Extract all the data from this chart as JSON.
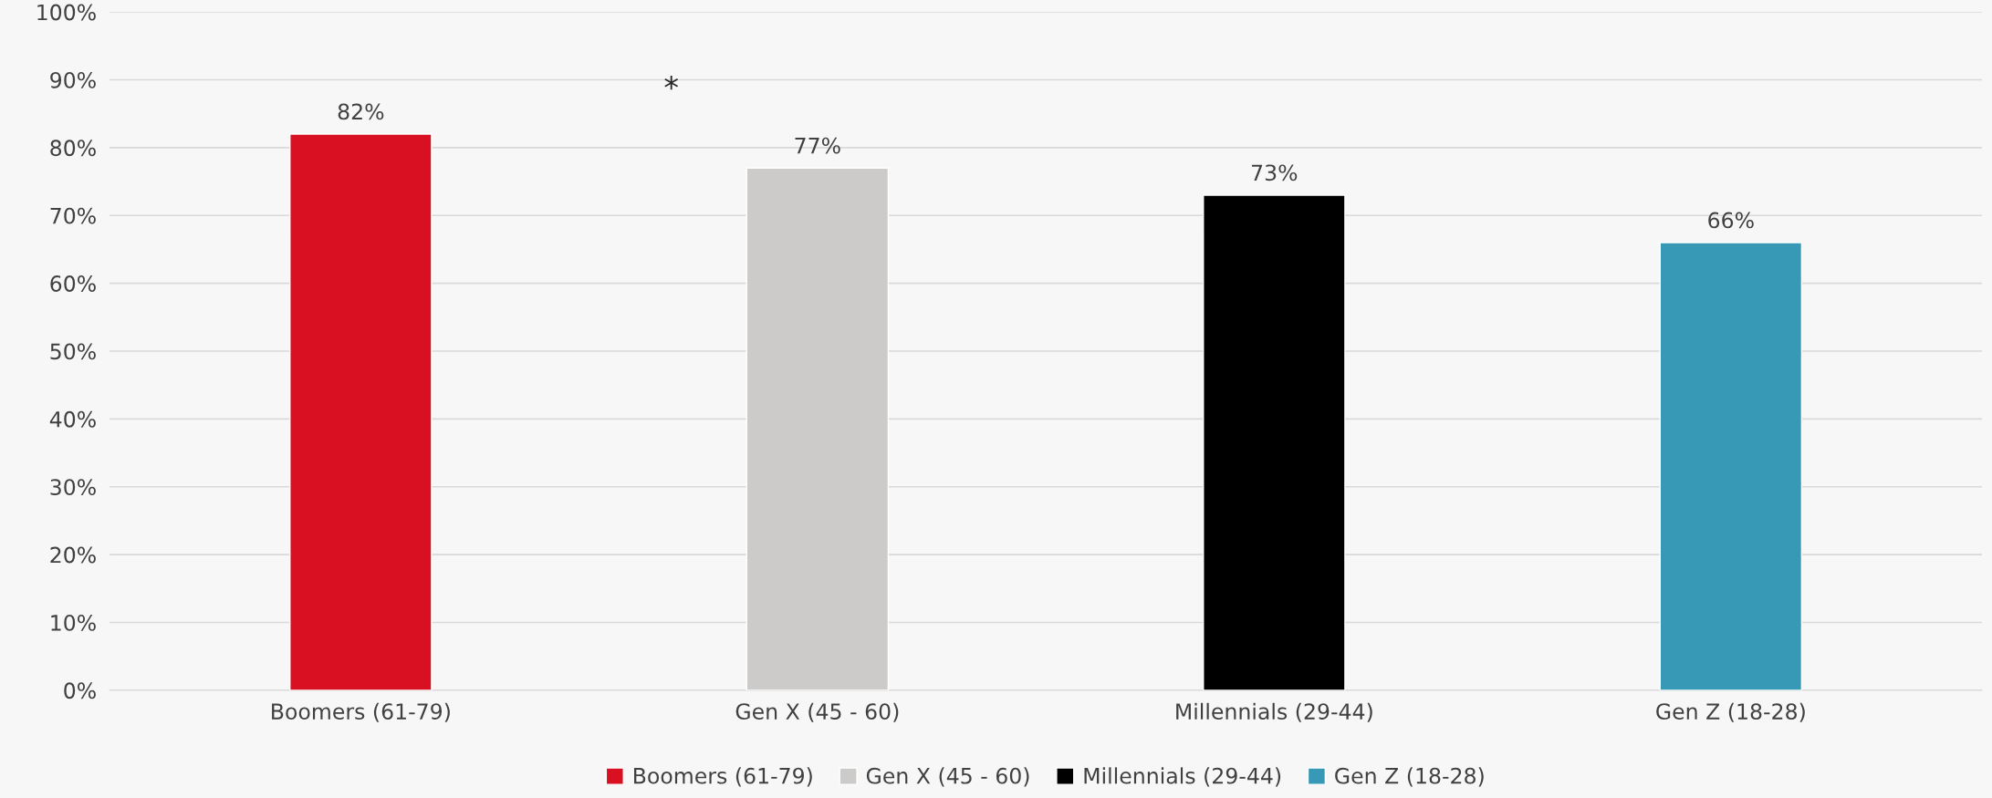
{
  "chart_data": {
    "type": "bar",
    "categories": [
      "Boomers (61-79)",
      "Gen X (45 - 60)",
      "Millennials (29-44)",
      "Gen Z (18-28)"
    ],
    "series": [
      {
        "name": "Boomers (61-79)",
        "color": "#d90f22",
        "values": [
          82,
          null,
          null,
          null
        ]
      },
      {
        "name": "Gen X (45 - 60)",
        "color": "#cccbc9",
        "values": [
          null,
          77,
          null,
          null
        ]
      },
      {
        "name": "Millennials (29-44)",
        "color": "#000000",
        "values": [
          null,
          null,
          73,
          null
        ]
      },
      {
        "name": "Gen Z (18-28)",
        "color": "#3799b5",
        "values": [
          null,
          null,
          null,
          66
        ]
      }
    ],
    "ylim": [
      0,
      100
    ],
    "yticks": [
      {
        "value": 0,
        "label": "0%"
      },
      {
        "value": 10,
        "label": "10%"
      },
      {
        "value": 20,
        "label": "20%"
      },
      {
        "value": 30,
        "label": "30%"
      },
      {
        "value": 40,
        "label": "40%"
      },
      {
        "value": 50,
        "label": "50%"
      },
      {
        "value": 60,
        "label": "60%"
      },
      {
        "value": 70,
        "label": "70%"
      },
      {
        "value": 80,
        "label": "80%"
      },
      {
        "value": 90,
        "label": "90%"
      },
      {
        "value": 100,
        "label": "100%"
      }
    ],
    "value_labels": [
      "82%",
      "77%",
      "73%",
      "66%"
    ],
    "annotations": [
      "*"
    ],
    "grid": "y",
    "legend": "bottom"
  }
}
